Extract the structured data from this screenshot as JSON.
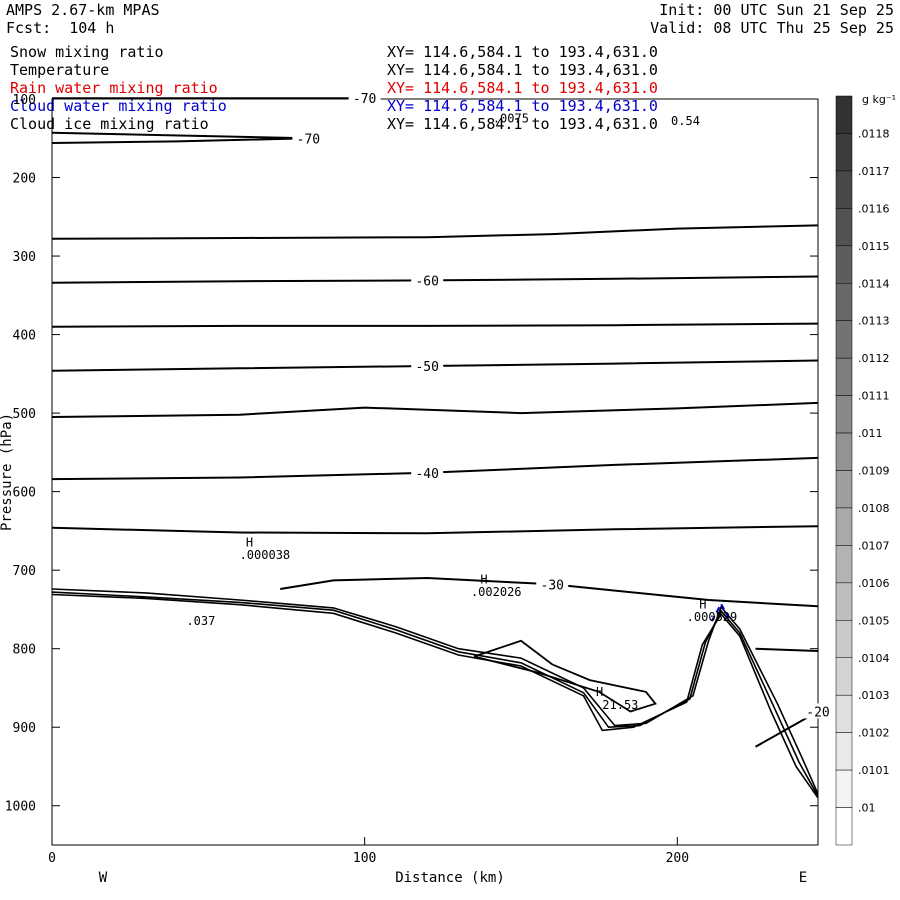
{
  "header": {
    "model": "AMPS 2.67-km MPAS",
    "forecast": "Fcst:  104 h",
    "init": "Init: 00 UTC Sun 21 Sep 25",
    "valid": "Valid: 08 UTC Thu 25 Sep 25"
  },
  "fields": [
    {
      "name": "Snow mixing ratio",
      "xy": "XY= 114.6,584.1 to 193.4,631.0",
      "color": "#000000"
    },
    {
      "name": "Temperature",
      "xy": "XY= 114.6,584.1 to 193.4,631.0",
      "color": "#000000"
    },
    {
      "name": "Rain water mixing ratio",
      "xy": "XY= 114.6,584.1 to 193.4,631.0",
      "color": "#e00000"
    },
    {
      "name": "Cloud water mixing ratio",
      "xy": "XY= 114.6,584.1 to 193.4,631.0",
      "color": "#0000cc"
    },
    {
      "name": "Cloud ice mixing ratio",
      "xy": "XY= 114.6,584.1 to 193.4,631.0",
      "color": "#000000"
    }
  ],
  "chart_data": {
    "type": "cross-section contour",
    "xlabel": "Distance (km)",
    "ylabel": "Pressure (hPa)",
    "xlim": [
      0,
      245
    ],
    "ylim": [
      1050,
      100
    ],
    "x_ticks": [
      0,
      100,
      200
    ],
    "y_ticks": [
      100,
      200,
      300,
      400,
      500,
      600,
      700,
      800,
      900,
      1000
    ],
    "direction_left": "W",
    "direction_right": "E",
    "temperature_isotherms": [
      {
        "label": "-70",
        "points": [
          [
            0,
            156
          ],
          [
            40,
            154
          ],
          [
            82,
            150
          ],
          [
            0,
            143
          ]
        ]
      },
      {
        "label": "-70",
        "points": [
          [
            0,
            99
          ],
          [
            100,
            99
          ]
        ]
      },
      {
        "points": [
          [
            0,
            278
          ],
          [
            60,
            277
          ],
          [
            120,
            276
          ],
          [
            160,
            272
          ],
          [
            200,
            265
          ],
          [
            245,
            261
          ]
        ]
      },
      {
        "label": "-60",
        "points": [
          [
            0,
            334
          ],
          [
            60,
            332
          ],
          [
            120,
            331
          ],
          [
            180,
            329
          ],
          [
            245,
            326
          ]
        ]
      },
      {
        "points": [
          [
            0,
            390
          ],
          [
            60,
            389
          ],
          [
            120,
            389
          ],
          [
            180,
            388
          ],
          [
            245,
            386
          ]
        ]
      },
      {
        "label": "-50",
        "points": [
          [
            0,
            446
          ],
          [
            60,
            443
          ],
          [
            120,
            440
          ],
          [
            180,
            437
          ],
          [
            245,
            433
          ]
        ]
      },
      {
        "points": [
          [
            0,
            505
          ],
          [
            60,
            502
          ],
          [
            100,
            493
          ],
          [
            150,
            500
          ],
          [
            200,
            494
          ],
          [
            245,
            487
          ]
        ]
      },
      {
        "label": "-40",
        "points": [
          [
            0,
            584
          ],
          [
            60,
            582
          ],
          [
            120,
            576
          ],
          [
            180,
            566
          ],
          [
            245,
            557
          ]
        ]
      },
      {
        "points": [
          [
            0,
            646
          ],
          [
            60,
            652
          ],
          [
            120,
            653
          ],
          [
            180,
            648
          ],
          [
            245,
            644
          ]
        ]
      },
      {
        "label": "-30",
        "points": [
          [
            73,
            724
          ],
          [
            90,
            713
          ],
          [
            120,
            710
          ],
          [
            160,
            718
          ],
          [
            210,
            738
          ],
          [
            245,
            746
          ]
        ]
      },
      {
        "points": [
          [
            225,
            800
          ],
          [
            245,
            803
          ]
        ]
      },
      {
        "label": "-20",
        "points": [
          [
            225,
            925
          ],
          [
            245,
            880
          ]
        ]
      }
    ],
    "terrain_lines": [
      {
        "points": [
          [
            0,
            724
          ],
          [
            30,
            729
          ],
          [
            60,
            738
          ],
          [
            90,
            748
          ],
          [
            110,
            772
          ],
          [
            130,
            800
          ],
          [
            150,
            812
          ],
          [
            170,
            850
          ],
          [
            180,
            898
          ],
          [
            190,
            895
          ],
          [
            205,
            860
          ],
          [
            210,
            790
          ],
          [
            214,
            747
          ],
          [
            220,
            775
          ],
          [
            232,
            870
          ],
          [
            240,
            940
          ],
          [
            245,
            985
          ]
        ]
      },
      {
        "points": [
          [
            0,
            728
          ],
          [
            30,
            734
          ],
          [
            60,
            741
          ],
          [
            90,
            751
          ],
          [
            110,
            776
          ],
          [
            130,
            804
          ],
          [
            150,
            818
          ],
          [
            170,
            856
          ],
          [
            178,
            900
          ],
          [
            188,
            898
          ],
          [
            204,
            864
          ],
          [
            209,
            792
          ],
          [
            214,
            752
          ],
          [
            220,
            780
          ],
          [
            231,
            875
          ],
          [
            239,
            945
          ],
          [
            245,
            988
          ]
        ]
      },
      {
        "points": [
          [
            0,
            731
          ],
          [
            30,
            736
          ],
          [
            60,
            744
          ],
          [
            90,
            755
          ],
          [
            110,
            780
          ],
          [
            130,
            808
          ],
          [
            150,
            822
          ],
          [
            170,
            860
          ],
          [
            176,
            904
          ],
          [
            186,
            900
          ],
          [
            203,
            868
          ],
          [
            208,
            795
          ],
          [
            214,
            756
          ],
          [
            220,
            784
          ],
          [
            230,
            880
          ],
          [
            238,
            950
          ],
          [
            245,
            990
          ]
        ]
      }
    ],
    "rain_contour": {
      "points": [
        [
          135,
          810
        ],
        [
          150,
          790
        ],
        [
          160,
          820
        ],
        [
          172,
          840
        ],
        [
          190,
          855
        ],
        [
          193,
          870
        ],
        [
          185,
          880
        ],
        [
          175,
          855
        ],
        [
          155,
          830
        ],
        [
          135,
          810
        ]
      ]
    },
    "cloud_water_contour": {
      "points": [
        [
          211,
          765
        ],
        [
          214,
          743
        ],
        [
          217,
          765
        ]
      ]
    },
    "annotations": [
      {
        "text": "H",
        "x": 62,
        "y": 670
      },
      {
        "text": ".000038",
        "x": 60,
        "y": 686
      },
      {
        "text": "H",
        "x": 137,
        "y": 717
      },
      {
        "text": ".002026",
        "x": 134,
        "y": 733
      },
      {
        "text": "H",
        "x": 174,
        "y": 860
      },
      {
        "text": "21.53",
        "x": 176,
        "y": 877
      },
      {
        "text": "H",
        "x": 207,
        "y": 749
      },
      {
        "text": ".000529",
        "x": 203,
        "y": 765
      },
      {
        "text": ".0075",
        "x": 141,
        "y": 130
      },
      {
        "text": "0.54",
        "x": 198,
        "y": 133
      },
      {
        "text": ".037",
        "x": 43,
        "y": 770
      }
    ],
    "colorbar": {
      "title": "g kg⁻¹",
      "ticks": [
        ".0118",
        ".0117",
        ".0116",
        ".0115",
        ".0114",
        ".0113",
        ".0112",
        ".0111",
        ".011",
        ".0109",
        ".0108",
        ".0107",
        ".0106",
        ".0105",
        ".0104",
        ".0103",
        ".0102",
        ".0101",
        ".01"
      ]
    }
  },
  "colors": {
    "rain": "#e00000",
    "cloud_water": "#0000cc",
    "axis": "#000000"
  }
}
